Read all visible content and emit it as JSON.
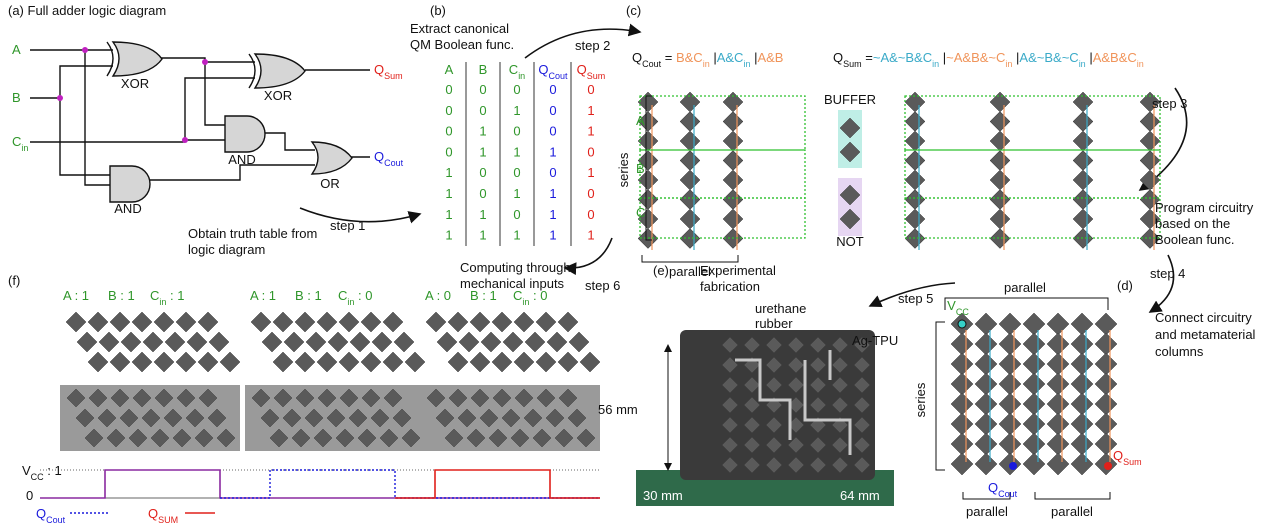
{
  "panel_a": {
    "title": "(a) Full adder logic diagram",
    "inputs": [
      {
        "text": "A"
      },
      {
        "text": "B"
      },
      {
        "text": "C",
        "sub": "in"
      }
    ],
    "gates": [
      "XOR",
      "XOR",
      "AND",
      "AND",
      "OR"
    ],
    "outputs": [
      {
        "text": "Q",
        "sub": "Sum"
      },
      {
        "text": "Q",
        "sub": "Cout"
      }
    ],
    "caption": [
      "Obtain truth table from",
      "logic diagram"
    ]
  },
  "steps": [
    "step 1",
    "step 2",
    "step 3",
    "step 4",
    "step 5",
    "step 6"
  ],
  "panel_b": {
    "label": "(b)",
    "caption": [
      "Extract canonical",
      "QM Boolean func."
    ],
    "header": [
      {
        "text": "A"
      },
      {
        "text": "B"
      },
      {
        "text": "C",
        "sub": "in"
      },
      {
        "text": "Q",
        "sub": "Cout"
      },
      {
        "text": "Q",
        "sub": "Sum"
      }
    ],
    "rows": [
      [
        0,
        0,
        0,
        0,
        0
      ],
      [
        0,
        0,
        1,
        0,
        1
      ],
      [
        0,
        1,
        0,
        0,
        1
      ],
      [
        0,
        1,
        1,
        1,
        0
      ],
      [
        1,
        0,
        0,
        0,
        1
      ],
      [
        1,
        0,
        1,
        1,
        0
      ],
      [
        1,
        1,
        0,
        1,
        0
      ],
      [
        1,
        1,
        1,
        1,
        1
      ]
    ]
  },
  "panel_c": {
    "label": "(c)",
    "q_cout": [
      {
        "text": "Q",
        "sub": "Cout"
      },
      {
        "text": " = "
      },
      {
        "text": "B&C",
        "sub": "in",
        "color": "#f0945a"
      },
      {
        "text": " |"
      },
      {
        "text": "A&C",
        "sub": "in",
        "color": "#3aaac8"
      },
      {
        "text": " |"
      },
      {
        "text": "A&B",
        "color": "#f0945a"
      }
    ],
    "q_sum": [
      {
        "text": "Q",
        "sub": "Sum"
      },
      {
        "text": " ="
      },
      {
        "text": "~A&~B&C",
        "sub": "in",
        "color": "#3aaac8"
      },
      {
        "text": " |"
      },
      {
        "text": "~A&B&~C",
        "sub": "in",
        "color": "#f0945a"
      },
      {
        "text": " |"
      },
      {
        "text": "A&~B&~C",
        "sub": "in",
        "color": "#3aaac8"
      },
      {
        "text": " |"
      },
      {
        "text": "A&B&C",
        "sub": "in",
        "color": "#f0945a"
      }
    ],
    "series": "series",
    "rows": [
      "A",
      "B",
      "C"
    ],
    "parallel": "parallel",
    "buffer": "BUFFER",
    "not": "NOT",
    "caption": [
      "Program circuitry",
      "based on the",
      "Boolean func."
    ]
  },
  "panel_d": {
    "label": "(d)",
    "parallel_top": "parallel",
    "vcc": {
      "text": "V",
      "sub": "CC"
    },
    "series": "series",
    "q_sum": {
      "text": "Q",
      "sub": "Sum"
    },
    "q_cout": {
      "text": "Q",
      "sub": "Cout"
    },
    "parallel_bottom": [
      "parallel",
      "parallel"
    ],
    "caption": [
      "Connect circuitry",
      "and metamaterial",
      "columns"
    ]
  },
  "panel_e": {
    "label": "(e)",
    "caption": [
      "Experimental",
      "fabrication"
    ],
    "rubber": [
      "urethane",
      "rubber"
    ],
    "tpu": "Ag-TPU",
    "height": "56 mm",
    "depth": "30 mm",
    "width": "64 mm"
  },
  "panel_f": {
    "label": "(f)",
    "caption": [
      "Computing through",
      "mechanical inputs"
    ],
    "cases": [
      [
        {
          "text": "A : 1"
        },
        {
          "text": "B : 1"
        },
        {
          "text": "C",
          "sub": "in",
          "tail": " : 1"
        }
      ],
      [
        {
          "text": "A : 1"
        },
        {
          "text": "B : 1"
        },
        {
          "text": "C",
          "sub": "in",
          "tail": " : 0"
        }
      ],
      [
        {
          "text": "A : 0"
        },
        {
          "text": "B : 1"
        },
        {
          "text": "C",
          "sub": "in",
          "tail": " : 0"
        }
      ]
    ],
    "high": {
      "text": "V",
      "sub": "CC",
      "tail": " : 1"
    },
    "low": "0",
    "legend": [
      {
        "text": "Q",
        "sub": "Cout"
      },
      {
        "text": "Q",
        "sub": "SUM"
      }
    ]
  }
}
